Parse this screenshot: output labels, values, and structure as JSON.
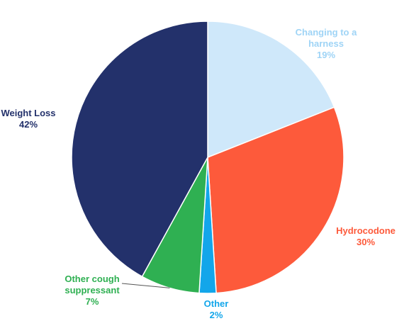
{
  "chart_data": {
    "type": "pie",
    "categories": [
      "Changing to a harness",
      "Hydrocodone",
      "Other",
      "Other cough suppressant",
      "Weight Loss"
    ],
    "values": [
      19,
      30,
      2,
      7,
      42
    ],
    "value_labels": [
      "19%",
      "30%",
      "2%",
      "7%",
      "42%"
    ],
    "colors": [
      "#cfe8fa",
      "#fd5a3b",
      "#13a6ea",
      "#2fb052",
      "#23316b"
    ],
    "label_colors": [
      "#9fd4f6",
      "#fd5a3b",
      "#13a6ea",
      "#2fb052",
      "#23316b"
    ]
  }
}
